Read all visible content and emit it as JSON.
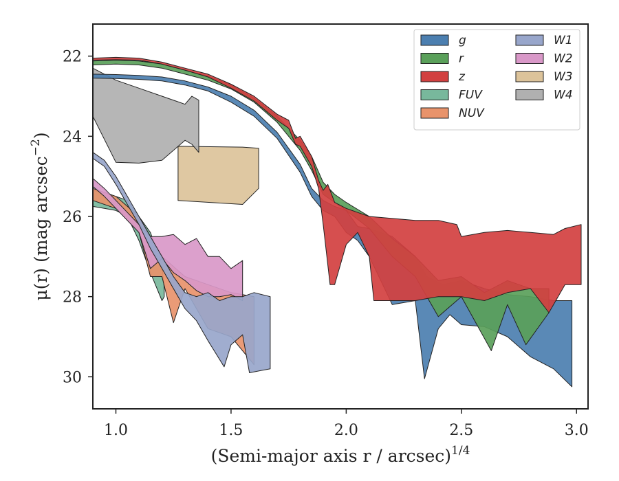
{
  "chart_data": {
    "type": "area",
    "title": "",
    "xlabel_main": "(Semi-major axis r / arcsec)",
    "xlabel_sup": "1/4",
    "ylabel_pre": "μ(r) (mag arcsec",
    "ylabel_sup": "−2",
    "ylabel_post": ")",
    "xlim": [
      0.9,
      3.05
    ],
    "ylim": [
      30.8,
      21.2
    ],
    "y_inverted": true,
    "legend_position": "upper right",
    "x_ticks": [
      1.0,
      1.5,
      2.0,
      2.5,
      3.0
    ],
    "x_tick_labels": [
      "1.0",
      "1.5",
      "2.0",
      "2.5",
      "3.0"
    ],
    "y_ticks": [
      22,
      24,
      26,
      28,
      30
    ],
    "y_tick_labels": [
      "22",
      "24",
      "26",
      "28",
      "30"
    ],
    "series": [
      {
        "name": "W3",
        "color": "#dcc39a",
        "zorder": 1,
        "upper": [
          [
            1.27,
            24.25
          ],
          [
            1.55,
            24.27
          ],
          [
            1.62,
            24.3
          ]
        ],
        "lower": [
          [
            1.27,
            25.6
          ],
          [
            1.55,
            25.7
          ],
          [
            1.62,
            25.3
          ]
        ]
      },
      {
        "name": "W4",
        "color": "#b0b0b0",
        "zorder": 2,
        "upper": [
          [
            0.9,
            22.3
          ],
          [
            1.0,
            22.6
          ],
          [
            1.1,
            22.8
          ],
          [
            1.2,
            23.0
          ],
          [
            1.3,
            23.2
          ],
          [
            1.33,
            23.0
          ],
          [
            1.36,
            23.1
          ]
        ],
        "lower": [
          [
            0.9,
            23.5
          ],
          [
            1.0,
            24.65
          ],
          [
            1.1,
            24.67
          ],
          [
            1.2,
            24.6
          ],
          [
            1.3,
            24.1
          ],
          [
            1.33,
            24.2
          ],
          [
            1.36,
            24.4
          ]
        ]
      },
      {
        "name": "g",
        "color": "#4c7fb0",
        "zorder": 3,
        "upper": [
          [
            0.9,
            22.45
          ],
          [
            1.0,
            22.46
          ],
          [
            1.1,
            22.48
          ],
          [
            1.2,
            22.52
          ],
          [
            1.3,
            22.62
          ],
          [
            1.4,
            22.77
          ],
          [
            1.5,
            23.0
          ],
          [
            1.6,
            23.35
          ],
          [
            1.7,
            23.9
          ],
          [
            1.8,
            24.7
          ],
          [
            1.85,
            25.3
          ],
          [
            1.9,
            25.6
          ],
          [
            1.95,
            25.75
          ],
          [
            2.0,
            25.85
          ],
          [
            2.05,
            26.25
          ],
          [
            2.1,
            26.3
          ],
          [
            2.2,
            26.5
          ],
          [
            2.3,
            27.0
          ],
          [
            2.35,
            27.5
          ],
          [
            2.42,
            27.7
          ],
          [
            2.5,
            27.6
          ],
          [
            2.6,
            27.8
          ],
          [
            2.7,
            27.95
          ],
          [
            2.8,
            28.0
          ],
          [
            2.9,
            28.1
          ],
          [
            2.98,
            28.1
          ]
        ],
        "lower": [
          [
            0.9,
            22.55
          ],
          [
            1.0,
            22.56
          ],
          [
            1.1,
            22.58
          ],
          [
            1.2,
            22.62
          ],
          [
            1.3,
            22.72
          ],
          [
            1.4,
            22.87
          ],
          [
            1.5,
            23.15
          ],
          [
            1.6,
            23.5
          ],
          [
            1.7,
            24.05
          ],
          [
            1.8,
            24.9
          ],
          [
            1.85,
            25.5
          ],
          [
            1.9,
            25.85
          ],
          [
            1.95,
            26.0
          ],
          [
            2.0,
            26.4
          ],
          [
            2.05,
            26.6
          ],
          [
            2.1,
            27.0
          ],
          [
            2.2,
            28.2
          ],
          [
            2.3,
            28.1
          ],
          [
            2.34,
            30.05
          ],
          [
            2.4,
            28.8
          ],
          [
            2.45,
            28.45
          ],
          [
            2.5,
            28.7
          ],
          [
            2.6,
            28.75
          ],
          [
            2.7,
            29.0
          ],
          [
            2.8,
            29.5
          ],
          [
            2.9,
            29.8
          ],
          [
            2.98,
            30.25
          ]
        ]
      },
      {
        "name": "r",
        "color": "#5aa05a",
        "zorder": 4,
        "upper": [
          [
            0.9,
            22.12
          ],
          [
            1.0,
            22.1
          ],
          [
            1.1,
            22.12
          ],
          [
            1.2,
            22.2
          ],
          [
            1.3,
            22.35
          ],
          [
            1.4,
            22.5
          ],
          [
            1.5,
            22.72
          ],
          [
            1.6,
            23.05
          ],
          [
            1.7,
            23.5
          ],
          [
            1.8,
            24.1
          ],
          [
            1.85,
            24.5
          ],
          [
            1.9,
            25.15
          ],
          [
            1.95,
            25.45
          ],
          [
            2.0,
            25.65
          ],
          [
            2.1,
            26.0
          ],
          [
            2.2,
            26.55
          ],
          [
            2.3,
            27.0
          ],
          [
            2.4,
            27.6
          ],
          [
            2.5,
            27.5
          ],
          [
            2.6,
            27.9
          ],
          [
            2.7,
            27.6
          ],
          [
            2.8,
            27.8
          ],
          [
            2.88,
            27.8
          ]
        ],
        "lower": [
          [
            0.9,
            22.22
          ],
          [
            1.0,
            22.2
          ],
          [
            1.1,
            22.22
          ],
          [
            1.2,
            22.3
          ],
          [
            1.3,
            22.45
          ],
          [
            1.4,
            22.6
          ],
          [
            1.5,
            22.82
          ],
          [
            1.6,
            23.15
          ],
          [
            1.7,
            23.65
          ],
          [
            1.8,
            24.35
          ],
          [
            1.85,
            24.85
          ],
          [
            1.9,
            25.45
          ],
          [
            1.95,
            25.65
          ],
          [
            2.0,
            25.85
          ],
          [
            2.1,
            26.3
          ],
          [
            2.2,
            27.0
          ],
          [
            2.3,
            27.5
          ],
          [
            2.4,
            28.5
          ],
          [
            2.5,
            28.0
          ],
          [
            2.63,
            29.35
          ],
          [
            2.7,
            28.2
          ],
          [
            2.78,
            29.2
          ],
          [
            2.88,
            28.4
          ]
        ]
      },
      {
        "name": "z",
        "color": "#d24040",
        "zorder": 5,
        "upper": [
          [
            0.9,
            22.05
          ],
          [
            1.0,
            22.03
          ],
          [
            1.1,
            22.05
          ],
          [
            1.2,
            22.15
          ],
          [
            1.3,
            22.3
          ],
          [
            1.4,
            22.45
          ],
          [
            1.5,
            22.7
          ],
          [
            1.6,
            23.0
          ],
          [
            1.7,
            23.45
          ],
          [
            1.75,
            23.6
          ],
          [
            1.78,
            24.05
          ],
          [
            1.8,
            24.0
          ],
          [
            1.85,
            24.5
          ],
          [
            1.88,
            25.1
          ],
          [
            1.9,
            25.35
          ],
          [
            1.92,
            25.2
          ],
          [
            1.95,
            25.65
          ],
          [
            2.0,
            25.8
          ],
          [
            2.05,
            25.9
          ],
          [
            2.1,
            26.0
          ],
          [
            2.2,
            26.05
          ],
          [
            2.3,
            26.1
          ],
          [
            2.4,
            26.1
          ],
          [
            2.48,
            26.2
          ],
          [
            2.5,
            26.5
          ],
          [
            2.6,
            26.4
          ],
          [
            2.7,
            26.35
          ],
          [
            2.8,
            26.4
          ],
          [
            2.9,
            26.45
          ],
          [
            2.95,
            26.3
          ],
          [
            3.02,
            26.2
          ]
        ],
        "lower": [
          [
            0.9,
            22.1
          ],
          [
            1.0,
            22.09
          ],
          [
            1.1,
            22.1
          ],
          [
            1.2,
            22.2
          ],
          [
            1.3,
            22.35
          ],
          [
            1.4,
            22.52
          ],
          [
            1.5,
            22.8
          ],
          [
            1.6,
            23.12
          ],
          [
            1.7,
            23.6
          ],
          [
            1.75,
            23.8
          ],
          [
            1.78,
            24.2
          ],
          [
            1.8,
            24.25
          ],
          [
            1.85,
            24.75
          ],
          [
            1.88,
            25.3
          ],
          [
            1.9,
            26.2
          ],
          [
            1.93,
            27.7
          ],
          [
            1.95,
            27.7
          ],
          [
            2.0,
            26.7
          ],
          [
            2.05,
            26.4
          ],
          [
            2.1,
            27.0
          ],
          [
            2.12,
            28.1
          ],
          [
            2.2,
            28.1
          ],
          [
            2.3,
            28.1
          ],
          [
            2.4,
            28.0
          ],
          [
            2.5,
            28.0
          ],
          [
            2.6,
            28.1
          ],
          [
            2.7,
            27.9
          ],
          [
            2.8,
            27.8
          ],
          [
            2.88,
            28.4
          ],
          [
            2.95,
            27.7
          ],
          [
            3.02,
            27.7
          ]
        ]
      },
      {
        "name": "FUV",
        "color": "#78b89c",
        "zorder": 6,
        "upper": [
          [
            0.9,
            25.35
          ],
          [
            0.95,
            25.4
          ],
          [
            1.0,
            25.5
          ],
          [
            1.05,
            25.6
          ],
          [
            1.1,
            26.0
          ],
          [
            1.15,
            26.4
          ],
          [
            1.2,
            27.2
          ],
          [
            1.21,
            27.8
          ]
        ],
        "lower": [
          [
            0.9,
            25.75
          ],
          [
            0.95,
            25.8
          ],
          [
            1.0,
            25.85
          ],
          [
            1.05,
            26.0
          ],
          [
            1.1,
            26.6
          ],
          [
            1.15,
            27.4
          ],
          [
            1.2,
            28.1
          ],
          [
            1.21,
            28.0
          ]
        ]
      },
      {
        "name": "NUV",
        "color": "#e8936b",
        "zorder": 7,
        "upper": [
          [
            0.9,
            25.3
          ],
          [
            1.0,
            25.5
          ],
          [
            1.1,
            26.0
          ],
          [
            1.2,
            27.0
          ],
          [
            1.3,
            27.5
          ],
          [
            1.4,
            27.7
          ],
          [
            1.5,
            27.9
          ],
          [
            1.6,
            28.0
          ]
        ],
        "lower": [
          [
            0.9,
            25.6
          ],
          [
            1.0,
            25.8
          ],
          [
            1.1,
            26.4
          ],
          [
            1.15,
            27.5
          ],
          [
            1.2,
            27.5
          ],
          [
            1.25,
            28.65
          ],
          [
            1.3,
            27.8
          ],
          [
            1.35,
            28.3
          ],
          [
            1.4,
            28.8
          ],
          [
            1.5,
            29.0
          ],
          [
            1.6,
            29.7
          ]
        ]
      },
      {
        "name": "W2",
        "color": "#d998c8",
        "zorder": 8,
        "upper": [
          [
            0.9,
            25.05
          ],
          [
            0.95,
            25.3
          ],
          [
            1.0,
            25.6
          ],
          [
            1.05,
            25.9
          ],
          [
            1.1,
            26.2
          ],
          [
            1.15,
            26.5
          ],
          [
            1.2,
            26.5
          ],
          [
            1.25,
            26.45
          ],
          [
            1.3,
            26.7
          ],
          [
            1.35,
            26.55
          ],
          [
            1.4,
            27.0
          ],
          [
            1.45,
            27.0
          ],
          [
            1.5,
            27.3
          ],
          [
            1.55,
            27.1
          ]
        ],
        "lower": [
          [
            0.9,
            25.25
          ],
          [
            0.95,
            25.5
          ],
          [
            1.0,
            25.8
          ],
          [
            1.05,
            26.1
          ],
          [
            1.1,
            26.4
          ],
          [
            1.15,
            27.3
          ],
          [
            1.2,
            27.05
          ],
          [
            1.25,
            27.4
          ],
          [
            1.3,
            27.6
          ],
          [
            1.35,
            27.85
          ],
          [
            1.4,
            28.0
          ],
          [
            1.45,
            28.0
          ],
          [
            1.5,
            27.95
          ],
          [
            1.55,
            28.1
          ]
        ]
      },
      {
        "name": "W1",
        "color": "#98a6cb",
        "zorder": 9,
        "upper": [
          [
            0.9,
            24.4
          ],
          [
            0.95,
            24.6
          ],
          [
            1.0,
            25.0
          ],
          [
            1.05,
            25.5
          ],
          [
            1.1,
            26.0
          ],
          [
            1.15,
            26.5
          ],
          [
            1.2,
            27.0
          ],
          [
            1.25,
            27.5
          ],
          [
            1.3,
            27.9
          ],
          [
            1.35,
            28.0
          ],
          [
            1.4,
            27.9
          ],
          [
            1.45,
            28.1
          ],
          [
            1.5,
            28.0
          ],
          [
            1.55,
            28.0
          ],
          [
            1.6,
            27.9
          ],
          [
            1.67,
            28.0
          ]
        ],
        "lower": [
          [
            0.9,
            24.55
          ],
          [
            0.95,
            24.75
          ],
          [
            1.0,
            25.2
          ],
          [
            1.05,
            25.7
          ],
          [
            1.1,
            26.2
          ],
          [
            1.15,
            26.8
          ],
          [
            1.2,
            27.3
          ],
          [
            1.25,
            27.8
          ],
          [
            1.3,
            28.3
          ],
          [
            1.35,
            28.6
          ],
          [
            1.4,
            29.1
          ],
          [
            1.47,
            29.75
          ],
          [
            1.5,
            29.2
          ],
          [
            1.55,
            28.95
          ],
          [
            1.58,
            29.9
          ],
          [
            1.67,
            29.8
          ]
        ]
      }
    ],
    "legend": {
      "col1": [
        {
          "label": "g",
          "color": "#4c7fb0"
        },
        {
          "label": "r",
          "color": "#5aa05a"
        },
        {
          "label": "z",
          "color": "#d24040"
        },
        {
          "label": "FUV",
          "color": "#78b89c"
        },
        {
          "label": "NUV",
          "color": "#e8936b"
        }
      ],
      "col2": [
        {
          "label": "W1",
          "color": "#98a6cb"
        },
        {
          "label": "W2",
          "color": "#d998c8"
        },
        {
          "label": "W3",
          "color": "#dcc39a"
        },
        {
          "label": "W4",
          "color": "#b0b0b0"
        }
      ]
    }
  }
}
